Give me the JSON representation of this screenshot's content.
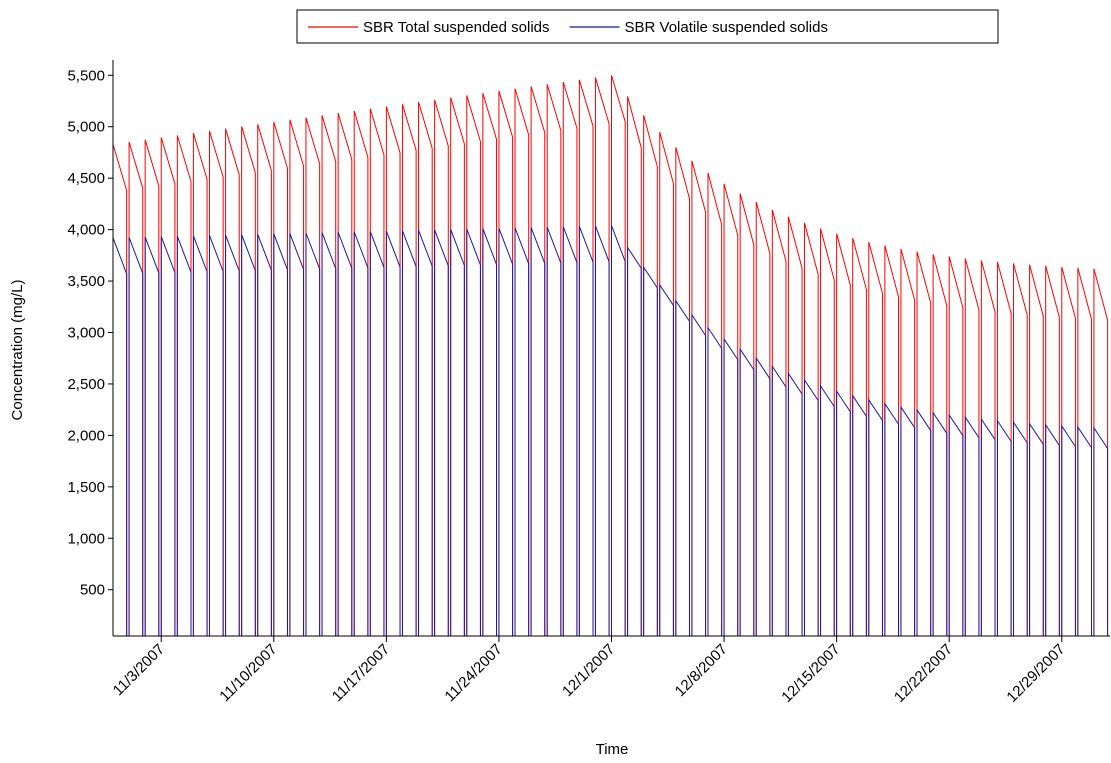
{
  "chart_data": {
    "type": "sawtooth",
    "x_label": "Time",
    "y_label": "Concentration (mg/L)",
    "x": [
      "10/31/2007",
      "11/1/2007",
      "11/2/2007",
      "11/3/2007",
      "11/4/2007",
      "11/5/2007",
      "11/6/2007",
      "11/7/2007",
      "11/8/2007",
      "11/9/2007",
      "11/10/2007",
      "11/11/2007",
      "11/12/2007",
      "11/13/2007",
      "11/14/2007",
      "11/15/2007",
      "11/16/2007",
      "11/17/2007",
      "11/18/2007",
      "11/19/2007",
      "11/20/2007",
      "11/21/2007",
      "11/22/2007",
      "11/23/2007",
      "11/24/2007",
      "11/25/2007",
      "11/26/2007",
      "11/27/2007",
      "11/28/2007",
      "11/29/2007",
      "11/30/2007",
      "12/1/2007",
      "12/2/2007",
      "12/3/2007",
      "12/4/2007",
      "12/5/2007",
      "12/6/2007",
      "12/7/2007",
      "12/8/2007",
      "12/9/2007",
      "12/10/2007",
      "12/11/2007",
      "12/12/2007",
      "12/13/2007",
      "12/14/2007",
      "12/15/2007",
      "12/16/2007",
      "12/17/2007",
      "12/18/2007",
      "12/19/2007",
      "12/20/2007",
      "12/21/2007",
      "12/22/2007",
      "12/23/2007",
      "12/24/2007",
      "12/25/2007",
      "12/26/2007",
      "12/27/2007",
      "12/28/2007",
      "12/29/2007",
      "12/30/2007",
      "12/31/2007"
    ],
    "series": [
      {
        "name": "SBR Total suspended solids",
        "color": "#ff0000",
        "values": [
          4830,
          4852,
          4873,
          4895,
          4916,
          4938,
          4960,
          4981,
          5003,
          5024,
          5046,
          5068,
          5089,
          5111,
          5132,
          5154,
          5176,
          5197,
          5219,
          5240,
          5262,
          5284,
          5305,
          5327,
          5348,
          5370,
          5392,
          5413,
          5435,
          5456,
          5478,
          5500,
          5295,
          5112,
          4948,
          4800,
          4669,
          4550,
          4445,
          4351,
          4268,
          4192,
          4125,
          4065,
          4010,
          3961,
          3919,
          3880,
          3845,
          3813,
          3786,
          3761,
          3739,
          3719,
          3701,
          3686,
          3671,
          3658,
          3647,
          3637,
          3628,
          3620
        ],
        "min_values": [
          4380,
          4402,
          4423,
          4445,
          4466,
          4488,
          4510,
          4531,
          4553,
          4574,
          4596,
          4618,
          4639,
          4661,
          4682,
          4704,
          4726,
          4747,
          4769,
          4790,
          4812,
          4834,
          4855,
          4877,
          4898,
          4920,
          4942,
          4963,
          4985,
          5006,
          5028,
          5050,
          4795,
          4612,
          4448,
          4300,
          4169,
          4050,
          3945,
          3851,
          3768,
          3692,
          3625,
          3565,
          3510,
          3461,
          3419,
          3380,
          3345,
          3313,
          3286,
          3261,
          3239,
          3219,
          3201,
          3186,
          3171,
          3158,
          3147,
          3137,
          3128,
          3120
        ]
      },
      {
        "name": "SBR Volatile suspended solids",
        "color": "#1a1a9e",
        "values": [
          3920,
          3924,
          3928,
          3932,
          3936,
          3940,
          3943,
          3947,
          3951,
          3955,
          3959,
          3963,
          3967,
          3971,
          3975,
          3979,
          3982,
          3986,
          3990,
          3994,
          3998,
          4002,
          4006,
          4010,
          4014,
          4018,
          4021,
          4025,
          4029,
          4033,
          4037,
          4040,
          3826,
          3634,
          3463,
          3308,
          3171,
          3047,
          2936,
          2838,
          2751,
          2671,
          2602,
          2539,
          2481,
          2430,
          2386,
          2345,
          2308,
          2275,
          2247,
          2220,
          2198,
          2177,
          2158,
          2142,
          2127,
          2113,
          2102,
          2091,
          2081,
          2073
        ],
        "min_values": [
          3570,
          3574,
          3578,
          3582,
          3586,
          3590,
          3593,
          3597,
          3601,
          3605,
          3609,
          3613,
          3617,
          3621,
          3625,
          3629,
          3632,
          3636,
          3640,
          3644,
          3648,
          3652,
          3656,
          3660,
          3664,
          3668,
          3671,
          3675,
          3679,
          3683,
          3687,
          3690,
          3626,
          3434,
          3263,
          3108,
          2971,
          2847,
          2736,
          2638,
          2551,
          2471,
          2402,
          2339,
          2281,
          2230,
          2186,
          2145,
          2108,
          2075,
          2047,
          2020,
          1998,
          1977,
          1958,
          1942,
          1927,
          1913,
          1902,
          1891,
          1881,
          1873
        ]
      }
    ],
    "xlim": [
      "10/31/2007",
      "1/1/2008"
    ],
    "xticks": [
      "11/3/2007",
      "11/10/2007",
      "11/17/2007",
      "11/24/2007",
      "12/1/2007",
      "12/8/2007",
      "12/15/2007",
      "12/22/2007",
      "12/29/2007"
    ],
    "ylim": [
      50,
      5600
    ],
    "yticks": [
      500,
      {
        "value": 1000,
        "label": "1,000"
      },
      {
        "value": 1500,
        "label": "1,500"
      },
      {
        "value": 2000,
        "label": "2,000"
      },
      {
        "value": 2500,
        "label": "2,500"
      },
      {
        "value": 3000,
        "label": "3,000"
      },
      {
        "value": 3500,
        "label": "3,500"
      },
      {
        "value": 4000,
        "label": "4,000"
      },
      {
        "value": 4500,
        "label": "4,500"
      },
      {
        "value": 5000,
        "label": "5,000"
      },
      {
        "value": 5500,
        "label": "5,500"
      }
    ],
    "legend": "top"
  }
}
